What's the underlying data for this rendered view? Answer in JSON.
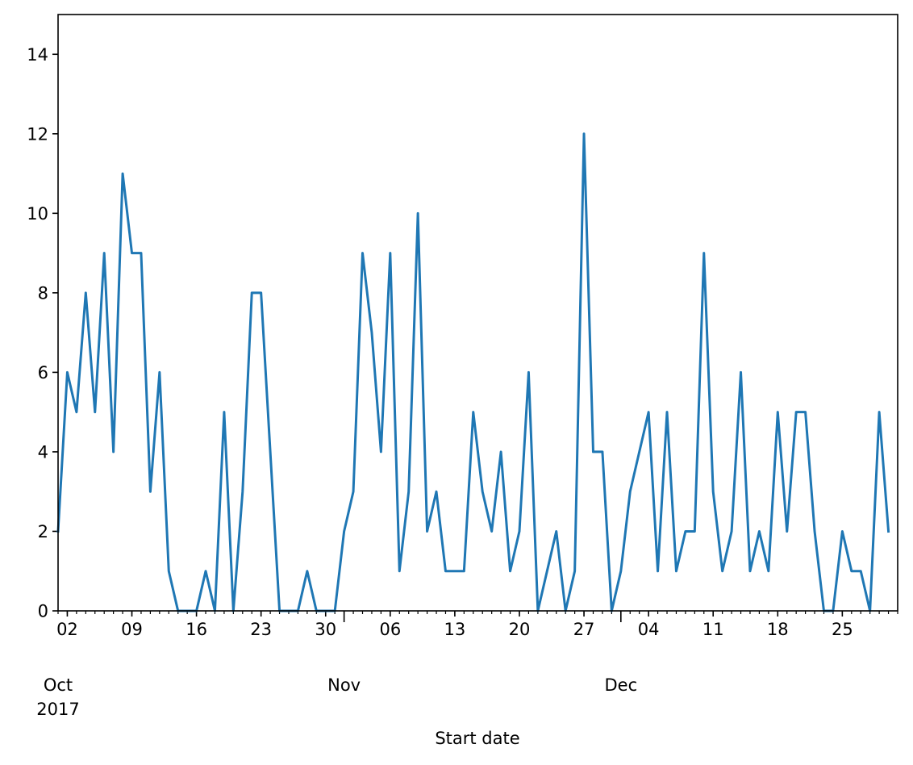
{
  "chart_data": {
    "type": "line",
    "xlabel": "Start date",
    "ylabel": "",
    "title": "",
    "x_range": [
      "2017-10-01",
      "2017-12-31"
    ],
    "ylim": [
      0,
      15
    ],
    "grid": false,
    "legend": "none",
    "colors": {
      "line": "#1f77b4",
      "axis": "#000000",
      "background": "#ffffff"
    },
    "y_ticks": [
      0,
      2,
      4,
      6,
      8,
      10,
      12,
      14
    ],
    "x_major_ticks": [
      {
        "date": "2017-10-02",
        "label": "02"
      },
      {
        "date": "2017-10-09",
        "label": "09"
      },
      {
        "date": "2017-10-16",
        "label": "16"
      },
      {
        "date": "2017-10-23",
        "label": "23"
      },
      {
        "date": "2017-10-30",
        "label": "30"
      },
      {
        "date": "2017-11-06",
        "label": "06"
      },
      {
        "date": "2017-11-13",
        "label": "13"
      },
      {
        "date": "2017-11-20",
        "label": "20"
      },
      {
        "date": "2017-11-27",
        "label": "27"
      },
      {
        "date": "2017-12-04",
        "label": "04"
      },
      {
        "date": "2017-12-11",
        "label": "11"
      },
      {
        "date": "2017-12-18",
        "label": "18"
      },
      {
        "date": "2017-12-25",
        "label": "25"
      }
    ],
    "x_month_labels": [
      {
        "date": "2017-10-01",
        "label": "Oct",
        "year": "2017"
      },
      {
        "date": "2017-11-01",
        "label": "Nov",
        "year": ""
      },
      {
        "date": "2017-12-01",
        "label": "Dec",
        "year": ""
      }
    ],
    "x_month_ticks": [
      "2017-11-01",
      "2017-12-01"
    ],
    "start_date": "2017-10-01",
    "values": [
      2,
      6,
      5,
      8,
      5,
      9,
      4,
      11,
      9,
      9,
      3,
      6,
      1,
      0,
      0,
      0,
      1,
      0,
      5,
      0,
      3,
      8,
      8,
      4,
      0,
      0,
      0,
      1,
      0,
      0,
      0,
      2,
      3,
      9,
      7,
      4,
      9,
      1,
      3,
      10,
      2,
      3,
      1,
      1,
      1,
      5,
      3,
      2,
      4,
      1,
      2,
      6,
      0,
      1,
      2,
      0,
      1,
      12,
      4,
      4,
      0,
      1,
      3,
      4,
      5,
      1,
      5,
      1,
      2,
      2,
      9,
      3,
      1,
      2,
      6,
      1,
      2,
      1,
      5,
      2,
      5,
      5,
      2,
      0,
      0,
      2,
      1,
      1,
      0,
      5,
      2
    ]
  }
}
